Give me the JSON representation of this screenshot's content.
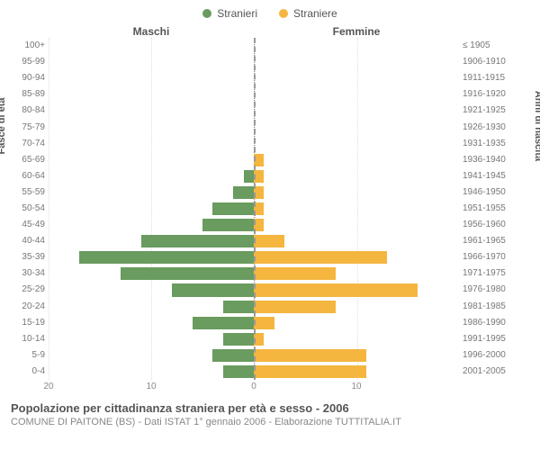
{
  "chart": {
    "type": "population-pyramid",
    "legend": [
      {
        "label": "Stranieri",
        "color": "#6a9b5f"
      },
      {
        "label": "Straniere",
        "color": "#f4b63f"
      }
    ],
    "headers": {
      "left": "Maschi",
      "right": "Femmine"
    },
    "y_title_left": "Fasce di età",
    "y_title_right": "Anni di nascita",
    "x_ticks_left": [
      20,
      10,
      0
    ],
    "x_ticks_right": [
      0,
      10
    ],
    "x_max": 20,
    "colors": {
      "male": "#6a9b5f",
      "female": "#f4b63f",
      "grid": "#dddddd",
      "center_line": "#999999",
      "background": "#ffffff",
      "text": "#555555",
      "text_muted": "#888888"
    },
    "rows": [
      {
        "age": "100+",
        "birth": "≤ 1905",
        "male": 0,
        "female": 0
      },
      {
        "age": "95-99",
        "birth": "1906-1910",
        "male": 0,
        "female": 0
      },
      {
        "age": "90-94",
        "birth": "1911-1915",
        "male": 0,
        "female": 0
      },
      {
        "age": "85-89",
        "birth": "1916-1920",
        "male": 0,
        "female": 0
      },
      {
        "age": "80-84",
        "birth": "1921-1925",
        "male": 0,
        "female": 0
      },
      {
        "age": "75-79",
        "birth": "1926-1930",
        "male": 0,
        "female": 0
      },
      {
        "age": "70-74",
        "birth": "1931-1935",
        "male": 0,
        "female": 0
      },
      {
        "age": "65-69",
        "birth": "1936-1940",
        "male": 0,
        "female": 1
      },
      {
        "age": "60-64",
        "birth": "1941-1945",
        "male": 1,
        "female": 1
      },
      {
        "age": "55-59",
        "birth": "1946-1950",
        "male": 2,
        "female": 1
      },
      {
        "age": "50-54",
        "birth": "1951-1955",
        "male": 4,
        "female": 1
      },
      {
        "age": "45-49",
        "birth": "1956-1960",
        "male": 5,
        "female": 1
      },
      {
        "age": "40-44",
        "birth": "1961-1965",
        "male": 11,
        "female": 3
      },
      {
        "age": "35-39",
        "birth": "1966-1970",
        "male": 17,
        "female": 13
      },
      {
        "age": "30-34",
        "birth": "1971-1975",
        "male": 13,
        "female": 8
      },
      {
        "age": "25-29",
        "birth": "1976-1980",
        "male": 8,
        "female": 16
      },
      {
        "age": "20-24",
        "birth": "1981-1985",
        "male": 3,
        "female": 8
      },
      {
        "age": "15-19",
        "birth": "1986-1990",
        "male": 6,
        "female": 2
      },
      {
        "age": "10-14",
        "birth": "1991-1995",
        "male": 3,
        "female": 1
      },
      {
        "age": "5-9",
        "birth": "1996-2000",
        "male": 4,
        "female": 11
      },
      {
        "age": "0-4",
        "birth": "2001-2005",
        "male": 3,
        "female": 11
      }
    ],
    "caption_title": "Popolazione per cittadinanza straniera per età e sesso - 2006",
    "caption_subtitle": "COMUNE DI PAITONE (BS) - Dati ISTAT 1° gennaio 2006 - Elaborazione TUTTITALIA.IT"
  }
}
